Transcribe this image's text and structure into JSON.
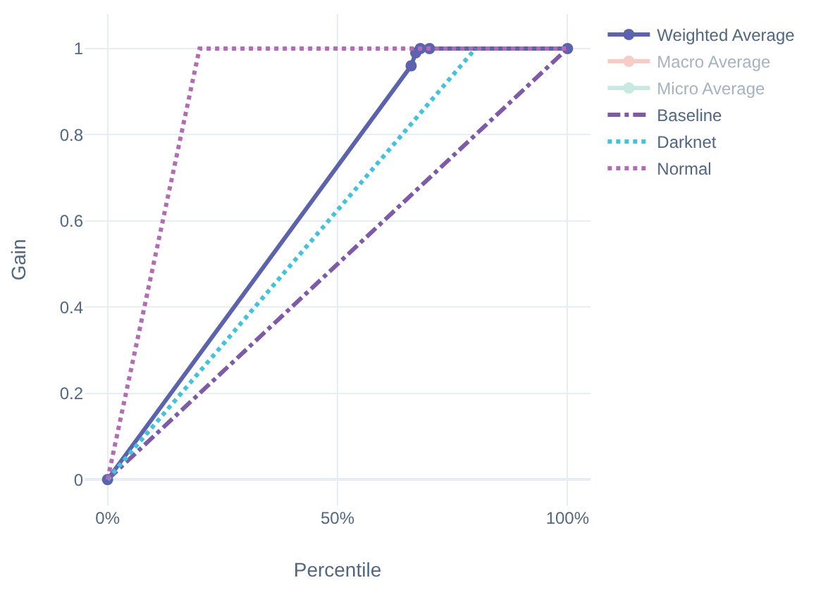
{
  "chart_data": {
    "type": "line",
    "xlabel": "Percentile",
    "ylabel": "Gain",
    "xlim": [
      -0.05,
      1.05
    ],
    "ylim": [
      -0.06,
      1.08
    ],
    "xticks": [
      {
        "value": 0,
        "label": "0%"
      },
      {
        "value": 0.5,
        "label": "50%"
      },
      {
        "value": 1,
        "label": "100%"
      }
    ],
    "yticks": [
      0,
      0.2,
      0.4,
      0.6,
      0.8,
      1
    ],
    "grid": true,
    "legend": "top right",
    "series": [
      {
        "name": "Weighted Average",
        "color": "#5c63ae",
        "marker": "circle",
        "line_style": "solid",
        "x": [
          0,
          0.66,
          0.67,
          0.68,
          0.7,
          1
        ],
        "values": [
          0,
          0.96,
          0.99,
          1,
          1,
          1
        ]
      },
      {
        "name": "Macro Average",
        "color": "#ef9a8a",
        "marker": "circle",
        "line_style": "solid"
      },
      {
        "name": "Micro Average",
        "color": "#8fd3c0",
        "marker": "circle",
        "line_style": "solid"
      },
      {
        "name": "Baseline",
        "color": "#7e5ba8",
        "marker": "none",
        "line_style": "dashdot",
        "x": [
          0,
          1
        ],
        "values": [
          0,
          1
        ]
      },
      {
        "name": "Darknet",
        "color": "#3ec4dc",
        "marker": "none",
        "line_style": "dotted",
        "x": [
          0,
          0.8
        ],
        "values": [
          0,
          1
        ]
      },
      {
        "name": "Normal",
        "color": "#b36bb5",
        "marker": "none",
        "line_style": "dotted",
        "x": [
          0,
          0.2,
          1
        ],
        "values": [
          0,
          1,
          1
        ]
      }
    ]
  }
}
